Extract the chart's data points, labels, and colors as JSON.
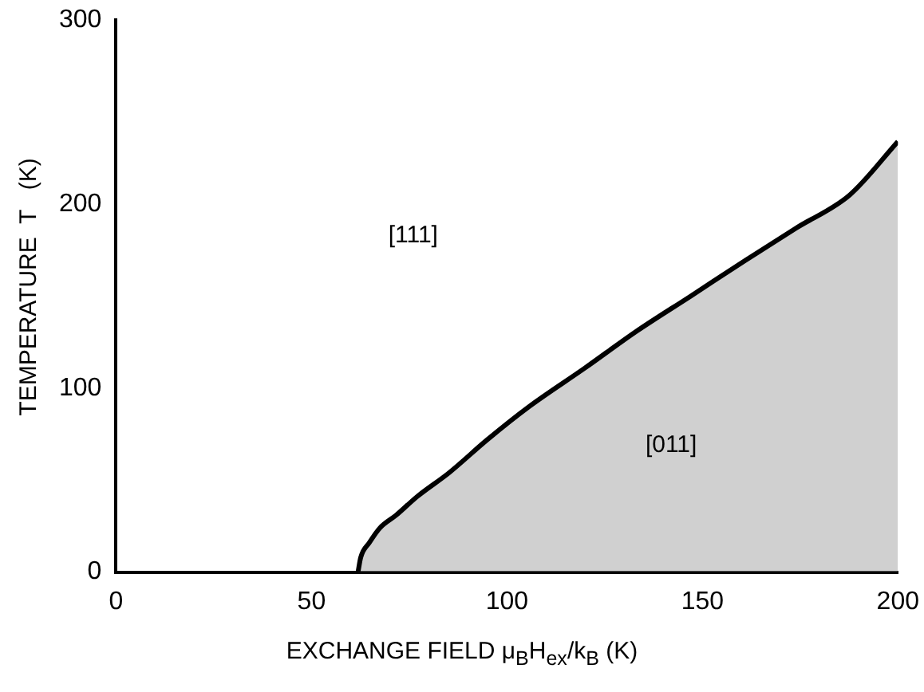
{
  "chart_data": {
    "type": "area",
    "xlabel": "EXCHANGE FIELD μ$_{B}$H$_{ex}$/k$_{B}$   (K)",
    "ylabel": "TEMPERATURE  T   (K)",
    "x": [
      61.9,
      62.6,
      64.8,
      67.5,
      71.7,
      77,
      85.2,
      95,
      105.7,
      120,
      133.2,
      147,
      160.7,
      174,
      187.7,
      200
    ],
    "series": [
      {
        "color": "#000000",
        "values": [
          0,
          8,
          16,
          24,
          31,
          41,
          54,
          72,
          90,
          111,
          131,
          150,
          169,
          187,
          205,
          234
        ]
      }
    ],
    "xlim": [
      0,
      200
    ],
    "xticks": [
      0,
      50,
      100,
      150,
      200
    ],
    "ylim": [
      0,
      300
    ],
    "yticks": [
      0,
      100,
      200,
      300
    ],
    "grid": false,
    "legend": false,
    "annotations": [
      "[111]",
      "[011]"
    ]
  }
}
